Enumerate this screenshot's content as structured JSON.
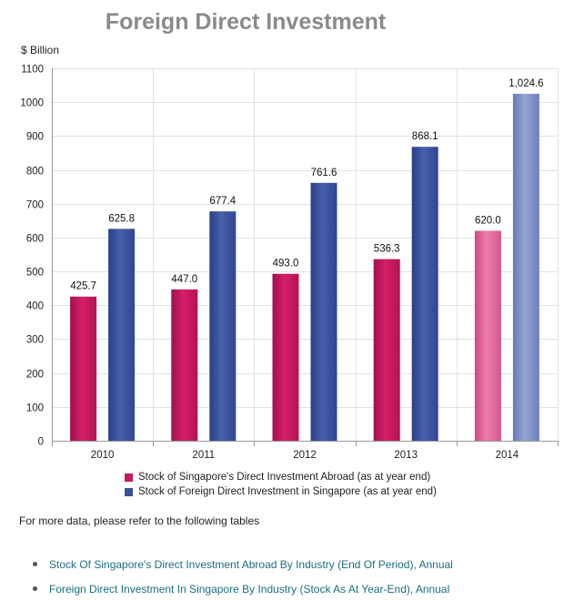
{
  "title": "Foreign Direct Investment",
  "y_unit": "$ Billion",
  "chart_data": {
    "type": "bar",
    "title": "Foreign Direct Investment",
    "ylabel": "$ Billion",
    "xlabel": "",
    "categories": [
      "2010",
      "2011",
      "2012",
      "2013",
      "2014"
    ],
    "ylim": [
      0,
      1100
    ],
    "yticks": [
      "0",
      "100",
      "200",
      "300",
      "400",
      "500",
      "600",
      "700",
      "800",
      "900",
      "1000",
      "1100"
    ],
    "grid": true,
    "legend_position": "bottom",
    "series": [
      {
        "name": "Stock of Singapore's Direct Investment Abroad (as at year end)",
        "values": [
          425.7,
          447.0,
          493.0,
          536.3,
          620.0
        ],
        "labels": [
          "425.7",
          "447.0",
          "493.0",
          "536.3",
          "620.0"
        ],
        "color": "#c8185e"
      },
      {
        "name": "Stock of Foreign Direct Investment in Singapore (as at year end)",
        "values": [
          625.8,
          677.4,
          761.6,
          868.1,
          1024.6
        ],
        "labels": [
          "625.8",
          "677.4",
          "761.6",
          "868.1",
          "1,024.6"
        ],
        "color": "#3a519a"
      }
    ],
    "highlight_category": "2014",
    "highlight_colors": [
      "#e2669c",
      "#7f93c4"
    ]
  },
  "more_info": "For more data, please refer to the following tables",
  "links": [
    "Stock Of Singapore's Direct Investment Abroad By Industry (End Of Period), Annual",
    "Foreign Direct Investment In Singapore By Industry (Stock As At Year-End), Annual"
  ]
}
